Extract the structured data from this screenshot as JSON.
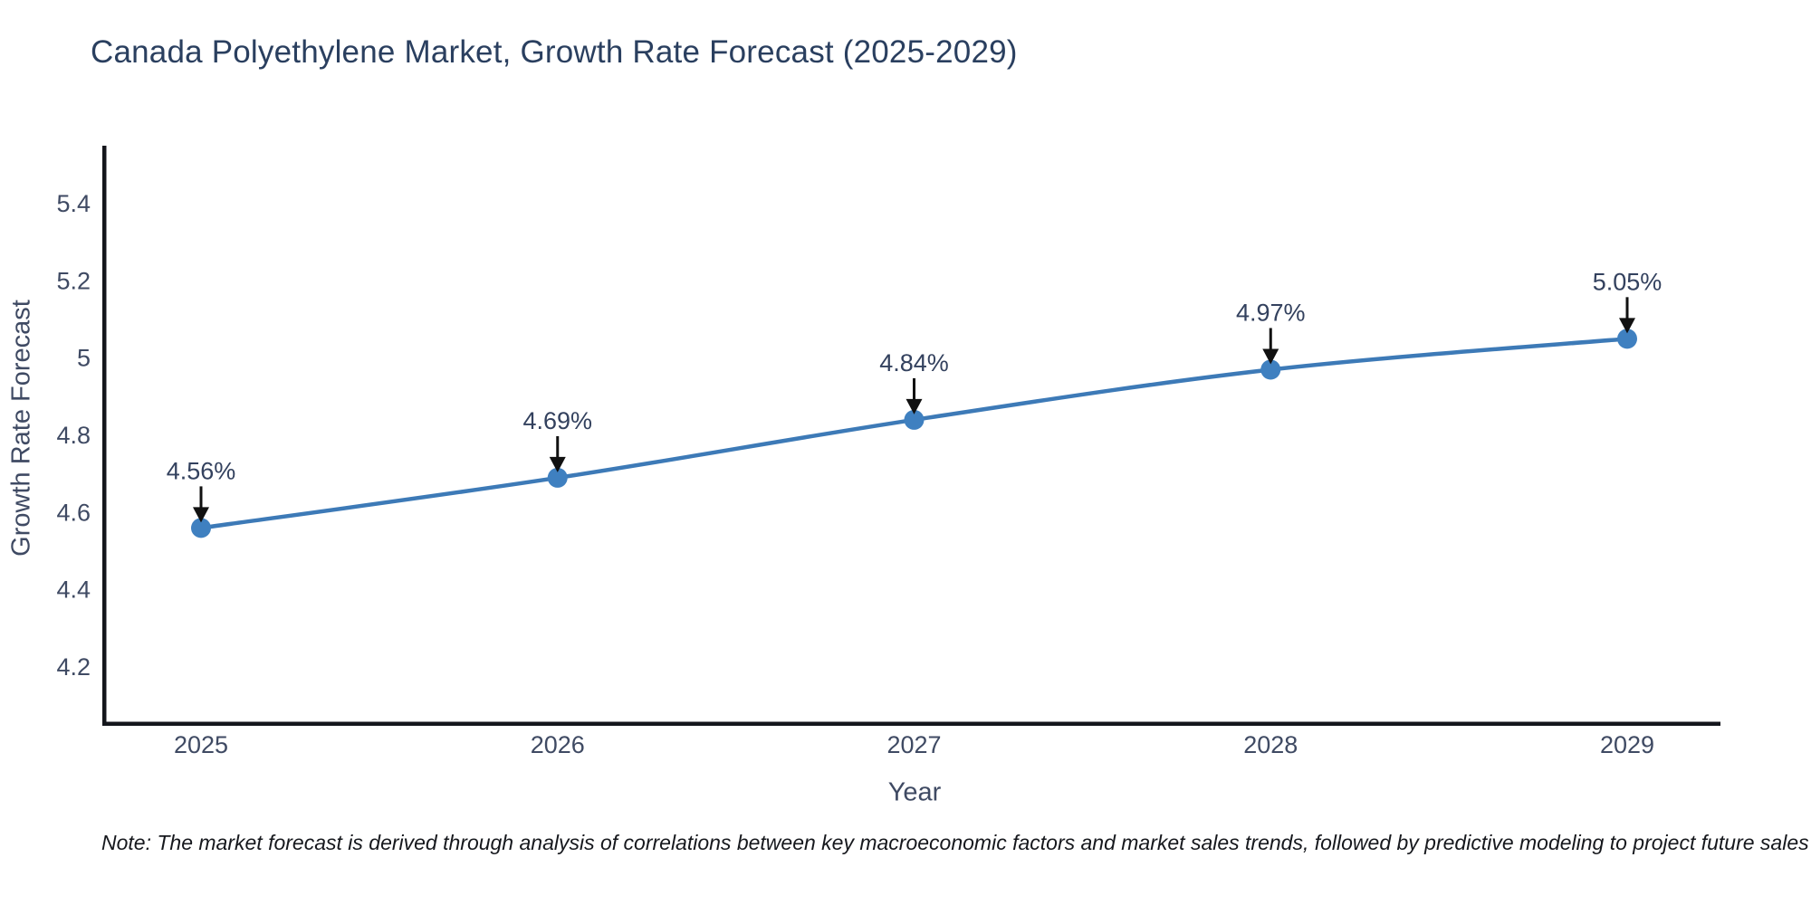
{
  "page": {
    "background": "#ffffff"
  },
  "header": {
    "title": "Canada Polyethylene Market, Growth Rate Forecast (2025-2029)"
  },
  "footnote": "Note: The market forecast is derived through analysis of correlations between key macroeconomic factors and market sales trends, followed by predictive modeling to project future sales",
  "chart_data": {
    "type": "line",
    "title": "Canada Polyethylene Market, Growth Rate Forecast (2025-2029)",
    "xlabel": "Year",
    "ylabel": "Growth Rate Forecast",
    "x": [
      2025,
      2026,
      2027,
      2028,
      2029
    ],
    "values": [
      4.56,
      4.69,
      4.84,
      4.97,
      5.05
    ],
    "point_labels": [
      "4.56%",
      "4.69%",
      "4.84%",
      "4.97%",
      "5.05%"
    ],
    "x_tick_labels": [
      "2025",
      "2026",
      "2027",
      "2028",
      "2029"
    ],
    "y_ticks": [
      4.2,
      4.4,
      4.6,
      4.8,
      5,
      5.2,
      5.4
    ],
    "y_tick_labels": [
      "4.2",
      "4.4",
      "4.6",
      "4.8",
      "5",
      "5.2",
      "5.4"
    ],
    "ylim": [
      4.05,
      5.55
    ],
    "grid": false,
    "legend": "none",
    "line_color": "#3d7ab7",
    "marker_color": "#3f80c0",
    "axis_color": "#14161c",
    "tick_color": "#3f4a63",
    "annotation_text_color": "#33415e",
    "arrow_color": "#111111"
  }
}
